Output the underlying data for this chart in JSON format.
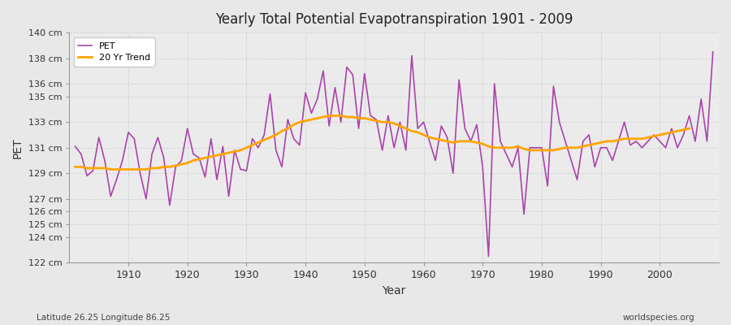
{
  "title": "Yearly Total Potential Evapotranspiration 1901 - 2009",
  "xlabel": "Year",
  "ylabel": "PET",
  "subtitle_left": "Latitude 26.25 Longitude 86.25",
  "subtitle_right": "worldspecies.org",
  "pet_color": "#AA44AA",
  "trend_color": "#FFA500",
  "background_color": "#E8E8E8",
  "plot_bg_color": "#EBEBEB",
  "grid_color": "#CCCCCC",
  "years": [
    1901,
    1902,
    1903,
    1904,
    1905,
    1906,
    1907,
    1908,
    1909,
    1910,
    1911,
    1912,
    1913,
    1914,
    1915,
    1916,
    1917,
    1918,
    1919,
    1920,
    1921,
    1922,
    1923,
    1924,
    1925,
    1926,
    1927,
    1928,
    1929,
    1930,
    1931,
    1932,
    1933,
    1934,
    1935,
    1936,
    1937,
    1938,
    1939,
    1940,
    1941,
    1942,
    1943,
    1944,
    1945,
    1946,
    1947,
    1948,
    1949,
    1950,
    1951,
    1952,
    1953,
    1954,
    1955,
    1956,
    1957,
    1958,
    1959,
    1960,
    1961,
    1962,
    1963,
    1964,
    1965,
    1966,
    1967,
    1968,
    1969,
    1970,
    1971,
    1972,
    1973,
    1974,
    1975,
    1976,
    1977,
    1978,
    1979,
    1980,
    1981,
    1982,
    1983,
    1984,
    1985,
    1986,
    1987,
    1988,
    1989,
    1990,
    1991,
    1992,
    1993,
    1994,
    1995,
    1996,
    1997,
    1998,
    1999,
    2000,
    2001,
    2002,
    2003,
    2004,
    2005,
    2006,
    2007,
    2008,
    2009
  ],
  "pet_values": [
    131.1,
    130.5,
    128.8,
    129.2,
    131.8,
    130.0,
    127.2,
    128.5,
    130.0,
    132.2,
    131.7,
    129.0,
    127.0,
    130.5,
    131.8,
    130.2,
    126.5,
    129.5,
    130.0,
    132.5,
    130.5,
    130.2,
    128.7,
    131.7,
    128.5,
    131.1,
    127.2,
    130.8,
    129.3,
    129.2,
    131.7,
    131.0,
    132.0,
    135.2,
    130.8,
    129.5,
    133.2,
    131.7,
    131.2,
    135.3,
    133.7,
    134.8,
    137.0,
    132.7,
    135.7,
    133.0,
    137.3,
    136.7,
    132.5,
    136.8,
    133.5,
    133.2,
    130.8,
    133.5,
    131.0,
    133.0,
    130.8,
    138.2,
    132.5,
    133.0,
    131.5,
    130.0,
    132.7,
    131.8,
    129.0,
    136.3,
    132.5,
    131.5,
    132.8,
    129.5,
    122.5,
    136.0,
    131.5,
    130.5,
    129.5,
    131.0,
    125.8,
    131.0,
    131.0,
    131.0,
    128.0,
    135.8,
    133.0,
    131.5,
    130.0,
    128.5,
    131.5,
    132.0,
    129.5,
    131.0,
    131.0,
    130.0,
    131.5,
    133.0,
    131.2,
    131.5,
    131.0,
    131.5,
    132.0,
    131.5,
    131.0,
    132.5,
    131.0,
    132.0,
    133.5,
    131.5,
    134.8,
    131.5,
    138.5
  ],
  "trend_values": [
    129.5,
    129.5,
    129.4,
    129.4,
    129.4,
    129.4,
    129.3,
    129.3,
    129.3,
    129.3,
    129.3,
    129.3,
    129.3,
    129.4,
    129.4,
    129.5,
    129.5,
    129.6,
    129.7,
    129.8,
    130.0,
    130.1,
    130.2,
    130.3,
    130.4,
    130.5,
    130.6,
    130.7,
    130.8,
    131.0,
    131.2,
    131.4,
    131.6,
    131.8,
    132.0,
    132.3,
    132.5,
    132.8,
    133.0,
    133.1,
    133.2,
    133.3,
    133.4,
    133.5,
    133.5,
    133.5,
    133.4,
    133.4,
    133.3,
    133.3,
    133.2,
    133.1,
    133.0,
    133.0,
    132.9,
    132.7,
    132.5,
    132.3,
    132.2,
    132.0,
    131.8,
    131.7,
    131.6,
    131.5,
    131.4,
    131.5,
    131.5,
    131.5,
    131.4,
    131.3,
    131.1,
    131.0,
    131.0,
    131.0,
    131.0,
    131.1,
    130.9,
    130.8,
    130.8,
    130.8,
    130.8,
    130.8,
    130.9,
    131.0,
    131.0,
    131.0,
    131.1,
    131.2,
    131.3,
    131.4,
    131.5,
    131.5,
    131.6,
    131.7,
    131.7,
    131.7,
    131.7,
    131.8,
    131.9,
    132.0,
    132.1,
    132.2,
    132.3,
    132.4,
    132.5,
    null,
    null,
    null,
    null
  ],
  "ylim": [
    122,
    140
  ],
  "yticks": [
    122,
    124,
    125,
    126,
    127,
    129,
    131,
    133,
    135,
    136,
    138,
    140
  ],
  "ytick_labels": [
    "122 cm",
    "124 cm",
    "125 cm",
    "126 cm",
    "127 cm",
    "129 cm",
    "131 cm",
    "133 cm",
    "135 cm",
    "136 cm",
    "138 cm",
    "140 cm"
  ],
  "xticks": [
    1910,
    1920,
    1930,
    1940,
    1950,
    1960,
    1970,
    1980,
    1990,
    2000
  ],
  "figsize": [
    9.0,
    4.0
  ],
  "dpi": 100
}
